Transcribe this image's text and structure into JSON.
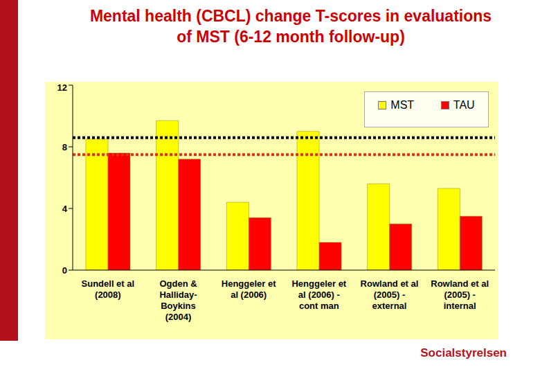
{
  "chart_data": {
    "type": "bar",
    "title": "Mental health (CBCL) change T-scores in evaluations of MST (6-12 month follow-up)",
    "categories": [
      "Sundell et al (2008)",
      "Ogden & Halliday-Boykins (2004)",
      "Henggeler et al (2006)",
      "Henggeler et al (2006) - cont man",
      "Rowland et al (2005) - external",
      "Rowland et al (2005) - internal"
    ],
    "series": [
      {
        "name": "MST",
        "color": "#ffff00",
        "values": [
          8.5,
          9.7,
          4.4,
          9.0,
          5.6,
          5.3
        ],
        "reference_line": 8.6
      },
      {
        "name": "TAU",
        "color": "#ff0000",
        "values": [
          7.6,
          7.2,
          3.4,
          1.8,
          3.0,
          3.5
        ],
        "reference_line": 7.5
      }
    ],
    "ylim": [
      0,
      12
    ],
    "yticks": [
      0,
      4,
      8,
      12
    ],
    "grid": false,
    "legend": "top-right"
  },
  "logo": "Socialstyrelsen"
}
